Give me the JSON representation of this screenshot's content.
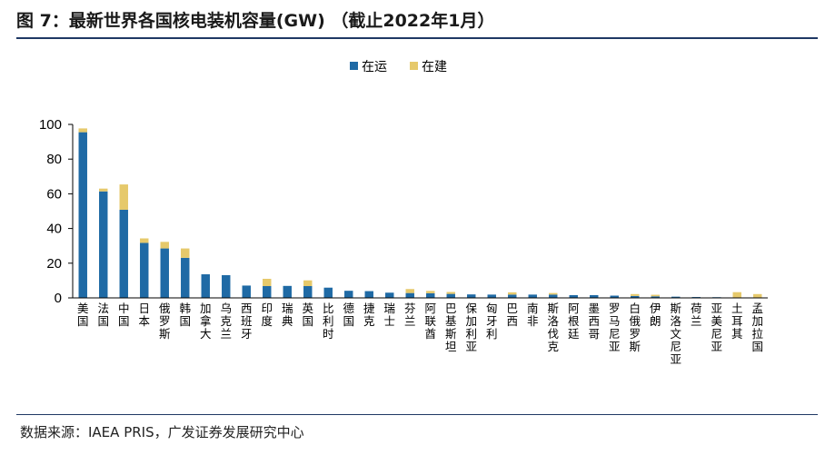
{
  "figure": {
    "title": "图 7：最新世界各国核电装机容量(GW) （截止2022年1月）",
    "source": "数据来源：IAEA PRIS，广发证券发展研究中心"
  },
  "colors": {
    "operating": "#1f6aa5",
    "construction": "#e6c96b",
    "rule": "#1f3864"
  },
  "chart_data": {
    "type": "bar",
    "stacked": true,
    "title": "最新世界各国核电装机容量(GW)",
    "ylim": [
      0,
      100
    ],
    "yticks": [
      0,
      20,
      40,
      60,
      80,
      100
    ],
    "legend_position": "top-center",
    "categories": [
      "美国",
      "法国",
      "中国",
      "日本",
      "俄罗斯",
      "韩国",
      "加拿大",
      "乌克兰",
      "西班牙",
      "印度",
      "瑞典",
      "英国",
      "比利时",
      "德国",
      "捷克",
      "瑞士",
      "芬兰",
      "阿联酋",
      "巴基斯坦",
      "保加利亚",
      "匈牙利",
      "巴西",
      "南非",
      "斯洛伐克",
      "阿根廷",
      "墨西哥",
      "罗马尼亚",
      "白俄罗斯",
      "伊朗",
      "斯洛文尼亚",
      "荷兰",
      "亚美尼亚",
      "土耳其",
      "孟加拉国"
    ],
    "series": [
      {
        "name": "在运",
        "values": [
          95.5,
          61.4,
          50.8,
          31.7,
          28.5,
          23.1,
          13.6,
          13.1,
          7.1,
          6.8,
          6.9,
          6.8,
          5.9,
          4.1,
          3.9,
          3.0,
          2.8,
          2.7,
          2.3,
          2.0,
          1.9,
          1.9,
          1.9,
          1.9,
          1.6,
          1.6,
          1.3,
          1.1,
          0.9,
          0.7,
          0.5,
          0.4,
          0.0,
          0.0
        ]
      },
      {
        "name": "在建",
        "values": [
          2.2,
          1.6,
          14.6,
          2.6,
          3.8,
          5.4,
          0.0,
          0.0,
          0.0,
          4.2,
          0.0,
          3.3,
          0.0,
          0.0,
          0.0,
          0.0,
          2.3,
          1.3,
          1.1,
          0.0,
          0.0,
          1.3,
          0.0,
          0.9,
          0.0,
          0.0,
          0.0,
          1.1,
          0.9,
          0.0,
          0.0,
          0.0,
          3.3,
          2.2
        ]
      }
    ]
  }
}
